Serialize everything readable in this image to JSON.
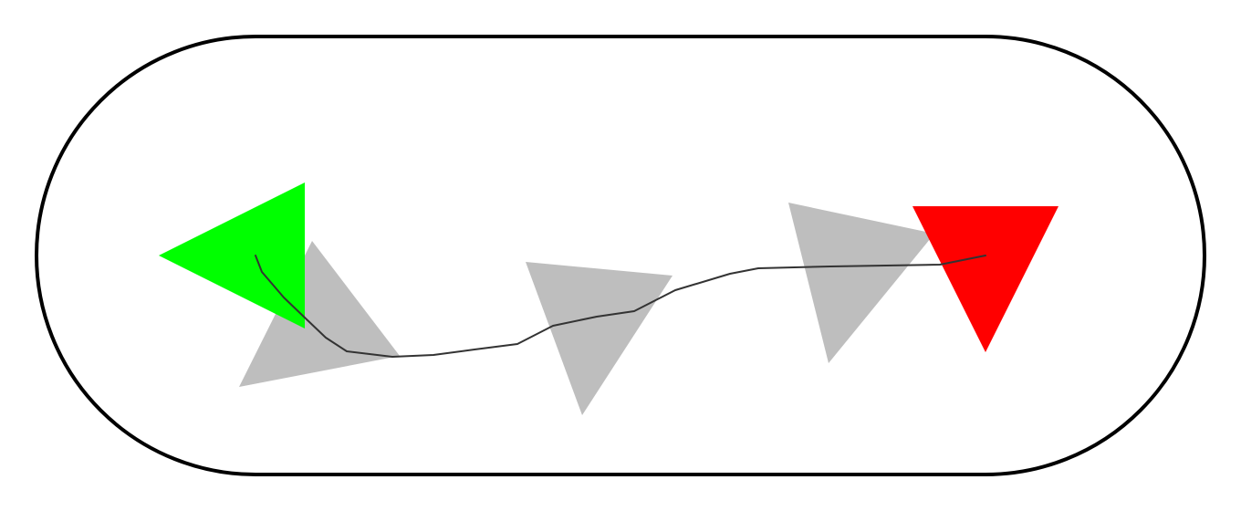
{
  "scene": {
    "arena_shape": "stadium",
    "arena_stroke_color": "#000000",
    "background_color": "#ffffff",
    "agent": {
      "color": "#00ff00",
      "heading_icon": "triangle-left",
      "opacity": 1
    },
    "goal": {
      "color": "#ff0000",
      "heading_icon": "triangle-down",
      "opacity": 1
    },
    "ghosts": [
      {
        "color": "#bebebe",
        "heading_icon": "triangle-up"
      },
      {
        "color": "#bebebe",
        "heading_icon": "triangle-down"
      },
      {
        "color": "#bebebe",
        "heading_icon": "triangle-down"
      }
    ],
    "trajectory": {
      "color": "#333333"
    }
  }
}
